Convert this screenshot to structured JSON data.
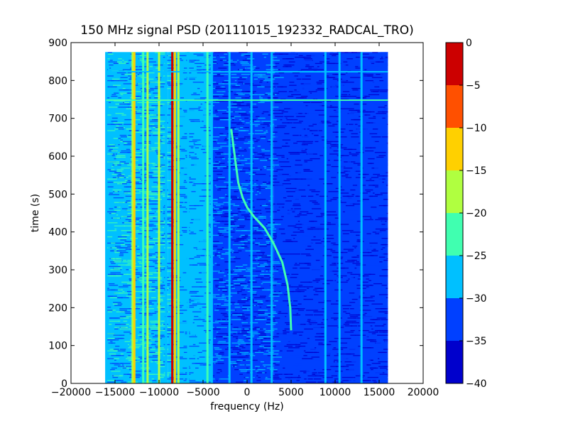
{
  "chart_data": {
    "type": "heatmap",
    "title": "150 MHz signal PSD (20111015_192332_RADCAL_TRO)",
    "xlabel": "frequency (Hz)",
    "ylabel": "time (s)",
    "xlim": [
      -20000,
      20000
    ],
    "ylim": [
      0,
      900
    ],
    "x_ticks": [
      -20000,
      -15000,
      -10000,
      -5000,
      0,
      5000,
      10000,
      15000,
      20000
    ],
    "x_tick_labels": [
      "−20000",
      "−15000",
      "−10000",
      "−5000",
      "0",
      "5000",
      "10000",
      "15000",
      "20000"
    ],
    "y_ticks": [
      0,
      100,
      200,
      300,
      400,
      500,
      600,
      700,
      800,
      900
    ],
    "y_tick_labels": [
      "0",
      "100",
      "200",
      "300",
      "400",
      "500",
      "600",
      "700",
      "800",
      "900"
    ],
    "data_extent": {
      "x": [
        -16000,
        16000
      ],
      "y": [
        0,
        875
      ]
    },
    "background_bands": [
      {
        "x": [
          -16000,
          -13200
        ],
        "level": -27
      },
      {
        "x": [
          -13200,
          -9000
        ],
        "level": -28
      },
      {
        "x": [
          -9000,
          -4000
        ],
        "level": -29
      },
      {
        "x": [
          -4000,
          3000
        ],
        "level": -31
      },
      {
        "x": [
          3000,
          16000
        ],
        "level": -34
      }
    ],
    "carrier_lines": [
      {
        "x": -16000,
        "level": -25
      },
      {
        "x": -13000,
        "level": -17
      },
      {
        "x": -12800,
        "level": -12
      },
      {
        "x": -11800,
        "level": -20
      },
      {
        "x": -11300,
        "level": -17
      },
      {
        "x": -10000,
        "level": -17
      },
      {
        "x": -9200,
        "level": -27
      },
      {
        "x": -8500,
        "level": -3
      },
      {
        "x": -8200,
        "level": -12
      },
      {
        "x": -7800,
        "level": -17
      },
      {
        "x": -6700,
        "level": -27
      },
      {
        "x": -4500,
        "level": -20
      },
      {
        "x": -4000,
        "level": -25
      },
      {
        "x": -2000,
        "level": -25
      },
      {
        "x": 500,
        "level": -25
      },
      {
        "x": 2800,
        "level": -25
      },
      {
        "x": 8900,
        "level": -25
      },
      {
        "x": 10500,
        "level": -25
      },
      {
        "x": 13000,
        "level": -25
      }
    ],
    "horizontal_lines": [
      {
        "y": 823,
        "level": -25
      },
      {
        "y": 748,
        "level": -20
      }
    ],
    "doppler_trace": {
      "level": -20,
      "points": [
        [
          -1800,
          672
        ],
        [
          -1400,
          600
        ],
        [
          -1000,
          530
        ],
        [
          -500,
          490
        ],
        [
          0,
          465
        ],
        [
          800,
          440
        ],
        [
          2000,
          410
        ],
        [
          3000,
          370
        ],
        [
          4000,
          320
        ],
        [
          4600,
          260
        ],
        [
          4900,
          200
        ],
        [
          5000,
          140
        ]
      ]
    },
    "colorbar": {
      "ticks": [
        0,
        -5,
        -10,
        -15,
        -20,
        -25,
        -30,
        -35,
        -40
      ],
      "tick_labels": [
        "0",
        "−5",
        "−10",
        "−15",
        "−20",
        "−25",
        "−30",
        "−35",
        "−40"
      ],
      "range": [
        -40,
        0
      ],
      "levels": [
        {
          "range": [
            -40,
            -35
          ],
          "color": "#0000cc"
        },
        {
          "range": [
            -35,
            -30
          ],
          "color": "#0040ff"
        },
        {
          "range": [
            -30,
            -25
          ],
          "color": "#00c0ff"
        },
        {
          "range": [
            -25,
            -20
          ],
          "color": "#40ffb0"
        },
        {
          "range": [
            -20,
            -15
          ],
          "color": "#b0ff40"
        },
        {
          "range": [
            -15,
            -10
          ],
          "color": "#ffd000"
        },
        {
          "range": [
            -10,
            -5
          ],
          "color": "#ff5000"
        },
        {
          "range": [
            -5,
            0
          ],
          "color": "#cc0000"
        }
      ]
    }
  }
}
